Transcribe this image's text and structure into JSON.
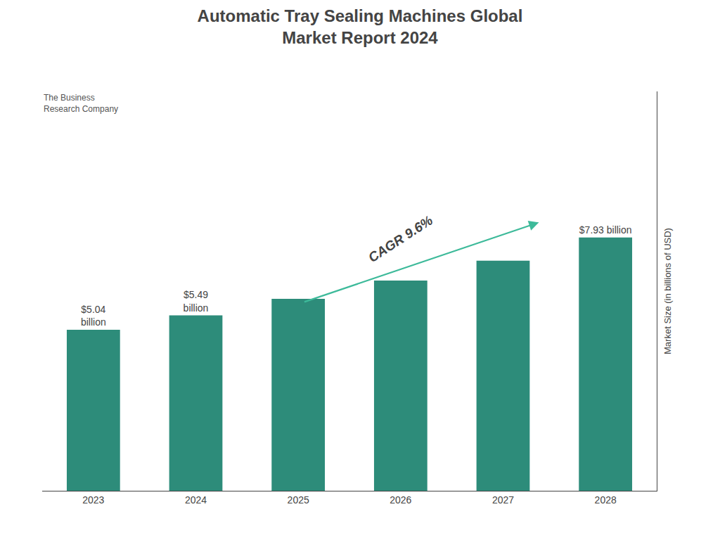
{
  "chart_data": {
    "type": "bar",
    "title": "Automatic Tray Sealing Machines Global\nMarket Report 2024",
    "categories": [
      "2023",
      "2024",
      "2025",
      "2026",
      "2027",
      "2028"
    ],
    "values": [
      5.04,
      5.49,
      6.01,
      6.58,
      7.2,
      7.93
    ],
    "color": "#2d8c7a",
    "ylabel": "Market Size (in billions of USD)",
    "ylim": [
      0,
      12.5
    ],
    "grid": false,
    "tick_labels": "x",
    "data_labels": true,
    "value_labels": [
      "$5.04\nbillion",
      "$5.49\nbillion",
      null,
      null,
      null,
      "$7.93 billion"
    ],
    "annotations": [
      "CAGR 9.6%",
      "The Business\nResearch Company"
    ]
  }
}
